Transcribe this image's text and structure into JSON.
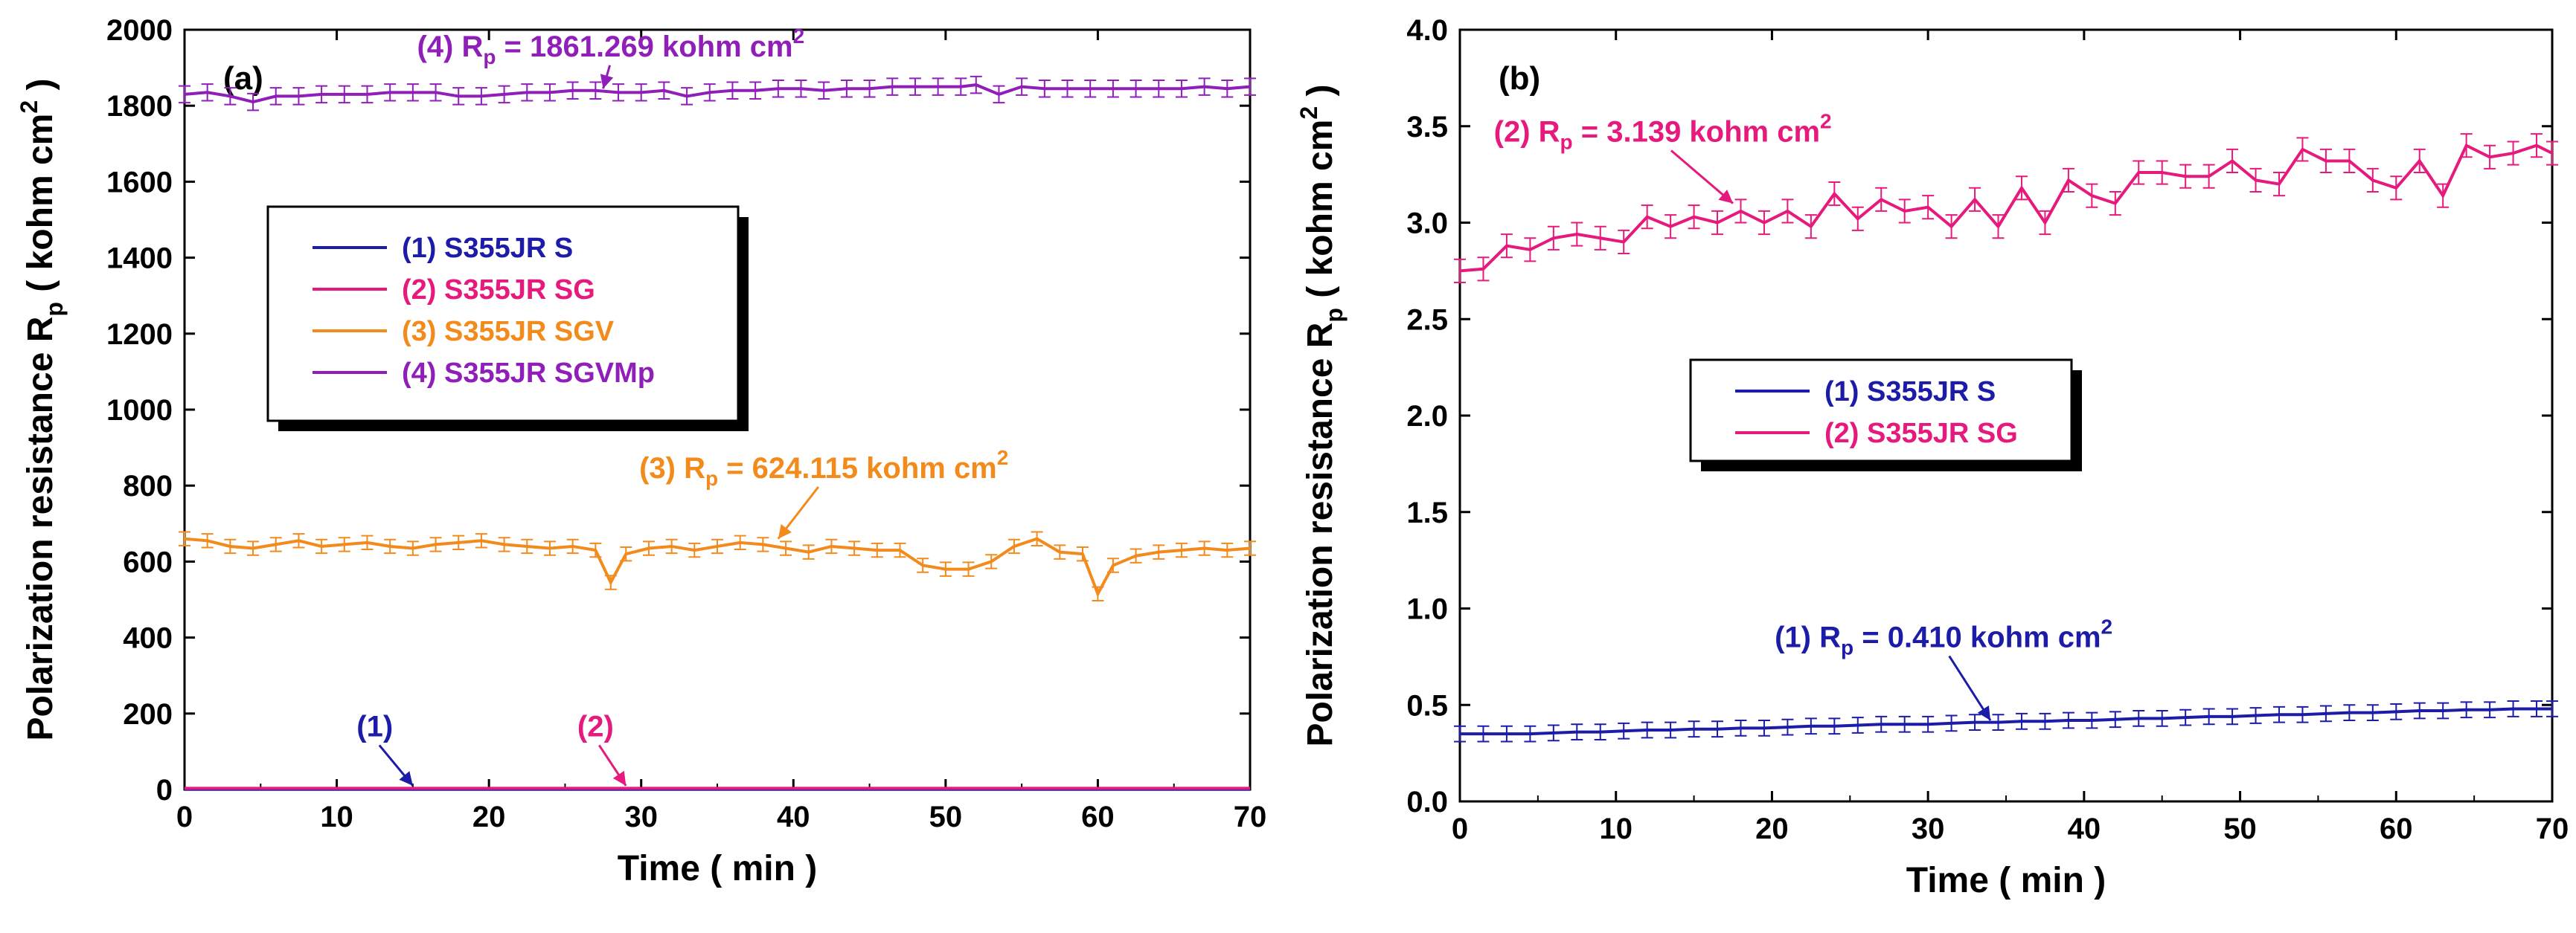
{
  "figure": {
    "panels": [
      "(a)",
      "(b)"
    ]
  },
  "chart_data": [
    {
      "type": "line",
      "panel_label": "(a)",
      "xlabel": "Time ( min )",
      "ylabel_main": "Polarization resistance R",
      "ylabel_sub": "p",
      "ylabel_unit": " ( kohm cm",
      "ylabel_sup": "2",
      "ylabel_end": " )",
      "xlim": [
        0,
        70
      ],
      "ylim": [
        0,
        2000
      ],
      "xticks": [
        0,
        10,
        20,
        30,
        40,
        50,
        60,
        70
      ],
      "yticks": [
        0,
        200,
        400,
        600,
        800,
        1000,
        1200,
        1400,
        1600,
        1800,
        2000
      ],
      "legend_position": "left-middle",
      "series": [
        {
          "name": "(1) S355JR S",
          "color": "#1c1ca8",
          "x": [
            0,
            70
          ],
          "y": [
            0.41,
            0.41
          ],
          "error": 0
        },
        {
          "name": "(2) S355JR SG",
          "color": "#e6197d",
          "x": [
            0,
            70
          ],
          "y": [
            3.14,
            3.14
          ],
          "error": 0
        },
        {
          "name": "(3) S355JR SGV",
          "color": "#f28a1c",
          "x": [
            0,
            1.5,
            3,
            4.5,
            6,
            7.5,
            9,
            10.5,
            12,
            13.5,
            15,
            16.5,
            18,
            19.5,
            21,
            22.5,
            24,
            25.5,
            27,
            28,
            29,
            30.5,
            32,
            33.5,
            35,
            36.5,
            38,
            39.5,
            41,
            42.5,
            44,
            45.5,
            47,
            48.5,
            50,
            51.5,
            53,
            54.5,
            56,
            57.5,
            59,
            60,
            61,
            62.5,
            64,
            65.5,
            67,
            68.5,
            70
          ],
          "y": [
            660,
            655,
            640,
            635,
            645,
            655,
            640,
            645,
            650,
            640,
            635,
            645,
            650,
            655,
            645,
            640,
            635,
            640,
            630,
            545,
            620,
            635,
            640,
            630,
            640,
            650,
            645,
            635,
            625,
            640,
            635,
            630,
            630,
            590,
            580,
            580,
            600,
            640,
            660,
            625,
            620,
            515,
            590,
            615,
            625,
            630,
            635,
            630,
            635
          ],
          "error": 18
        },
        {
          "name": "(4) S355JR SGVMp",
          "color": "#8f1fb8",
          "x": [
            0,
            1.5,
            3,
            4.5,
            6,
            7.5,
            9,
            10.5,
            12,
            13.5,
            15,
            16.5,
            18,
            19.5,
            21,
            22.5,
            24,
            25.5,
            27,
            28.5,
            30,
            31.5,
            33,
            34.5,
            36,
            37.5,
            39,
            40.5,
            42,
            43.5,
            45,
            46.5,
            48,
            49.5,
            51,
            52,
            53.5,
            55,
            56.5,
            58,
            59.5,
            61,
            62.5,
            64,
            65.5,
            67,
            68.5,
            70
          ],
          "y": [
            1830,
            1835,
            1825,
            1810,
            1825,
            1825,
            1830,
            1830,
            1830,
            1835,
            1835,
            1835,
            1825,
            1825,
            1830,
            1835,
            1835,
            1840,
            1840,
            1835,
            1835,
            1840,
            1825,
            1835,
            1840,
            1840,
            1845,
            1845,
            1840,
            1845,
            1845,
            1850,
            1850,
            1850,
            1850,
            1855,
            1830,
            1850,
            1845,
            1845,
            1845,
            1845,
            1845,
            1845,
            1845,
            1850,
            1845,
            1850
          ],
          "error": 22
        }
      ],
      "annotations": [
        {
          "main": "(4) R",
          "sub": "p",
          "rest": " = 1861.269 kohm cm",
          "sup": "2",
          "color": "#8f1fb8",
          "x": 28,
          "y": 1930,
          "arrow_to": [
            27.5,
            1845
          ]
        },
        {
          "main": "(3) R",
          "sub": "p",
          "rest": " = 624.115 kohm cm",
          "sup": "2",
          "color": "#f28a1c",
          "x": 42,
          "y": 820,
          "arrow_to": [
            39,
            660
          ]
        },
        {
          "text": "(1)",
          "color": "#1c1ca8",
          "x": 12.5,
          "y": 140,
          "arrow_to": [
            15,
            10
          ]
        },
        {
          "text": "(2)",
          "color": "#e6197d",
          "x": 27,
          "y": 140,
          "arrow_to": [
            29,
            10
          ]
        }
      ]
    },
    {
      "type": "line",
      "panel_label": "(b)",
      "xlabel": "Time ( min )",
      "ylabel_main": "Polarization resistance R",
      "ylabel_sub": "p",
      "ylabel_unit": " ( kohm cm",
      "ylabel_sup": "2",
      "ylabel_end": " )",
      "xlim": [
        0,
        70
      ],
      "ylim": [
        0,
        4.0
      ],
      "xticks": [
        0,
        10,
        20,
        30,
        40,
        50,
        60,
        70
      ],
      "yticks": [
        0.0,
        0.5,
        1.0,
        1.5,
        2.0,
        2.5,
        3.0,
        3.5,
        4.0
      ],
      "legend_position": "center-left",
      "series": [
        {
          "name": "(1) S355JR S",
          "color": "#1c1ca8",
          "x": [
            0,
            1.5,
            3,
            4.5,
            6,
            7.5,
            9,
            10.5,
            12,
            13.5,
            15,
            16.5,
            18,
            19.5,
            21,
            22.5,
            24,
            25.5,
            27,
            28.5,
            30,
            31.5,
            33,
            34.5,
            36,
            37.5,
            39,
            40.5,
            42,
            43.5,
            45,
            46.5,
            48,
            49.5,
            51,
            52.5,
            54,
            55.5,
            57,
            58.5,
            60,
            61.5,
            63,
            64.5,
            66,
            67.5,
            69,
            70
          ],
          "y": [
            0.35,
            0.35,
            0.35,
            0.35,
            0.355,
            0.36,
            0.36,
            0.365,
            0.37,
            0.37,
            0.375,
            0.375,
            0.38,
            0.38,
            0.385,
            0.39,
            0.39,
            0.395,
            0.4,
            0.4,
            0.4,
            0.405,
            0.41,
            0.41,
            0.415,
            0.415,
            0.42,
            0.42,
            0.425,
            0.43,
            0.43,
            0.435,
            0.44,
            0.44,
            0.445,
            0.45,
            0.45,
            0.455,
            0.46,
            0.46,
            0.465,
            0.47,
            0.47,
            0.475,
            0.475,
            0.48,
            0.48,
            0.48
          ],
          "error": 0.04
        },
        {
          "name": "(2) S355JR SG",
          "color": "#e6197d",
          "x": [
            0,
            1.5,
            3,
            4.5,
            6,
            7.5,
            9,
            10.5,
            12,
            13.5,
            15,
            16.5,
            18,
            19.5,
            21,
            22.5,
            24,
            25.5,
            27,
            28.5,
            30,
            31.5,
            33,
            34.5,
            36,
            37.5,
            39,
            40.5,
            42,
            43.5,
            45,
            46.5,
            48,
            49.5,
            51,
            52.5,
            54,
            55.5,
            57,
            58.5,
            60,
            61.5,
            63,
            64.5,
            66,
            67.5,
            69,
            70
          ],
          "y": [
            2.75,
            2.76,
            2.88,
            2.86,
            2.92,
            2.94,
            2.92,
            2.9,
            3.03,
            2.98,
            3.03,
            3.0,
            3.06,
            3.0,
            3.06,
            2.98,
            3.15,
            3.02,
            3.12,
            3.06,
            3.08,
            2.98,
            3.12,
            2.98,
            3.18,
            3.0,
            3.22,
            3.14,
            3.1,
            3.26,
            3.26,
            3.24,
            3.24,
            3.32,
            3.22,
            3.2,
            3.38,
            3.32,
            3.32,
            3.22,
            3.18,
            3.32,
            3.14,
            3.4,
            3.34,
            3.36,
            3.4,
            3.36
          ],
          "error": 0.06
        }
      ],
      "annotations": [
        {
          "main": "(2) R",
          "sub": "p",
          "rest": " = 3.139 kohm cm",
          "sup": "2",
          "color": "#e6197d",
          "x": 13,
          "y": 3.42,
          "arrow_to": [
            17.5,
            3.1
          ]
        },
        {
          "main": "(1) R",
          "sub": "p",
          "rest": " = 0.410 kohm cm",
          "sup": "2",
          "color": "#1c1ca8",
          "x": 31,
          "y": 0.8,
          "arrow_to": [
            34,
            0.42
          ]
        }
      ]
    }
  ]
}
